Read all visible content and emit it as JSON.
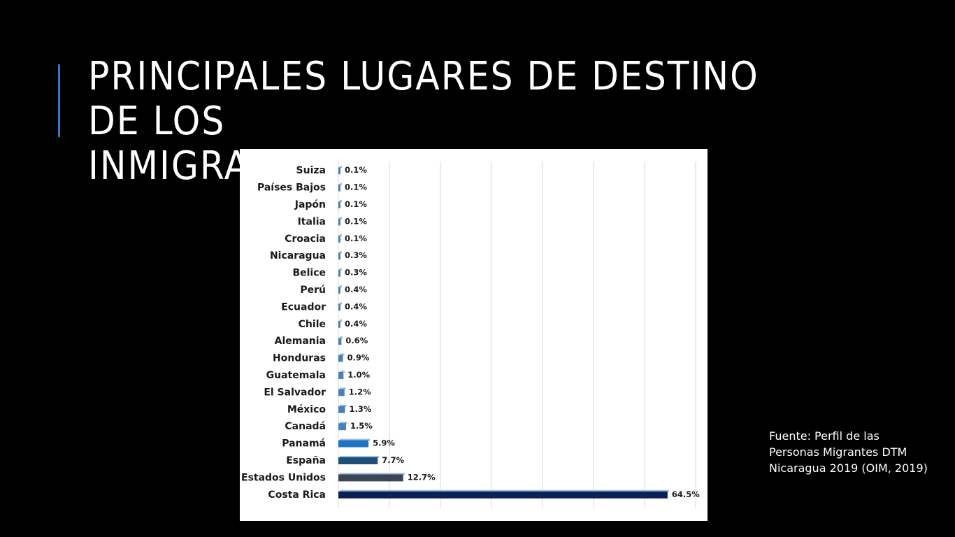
{
  "slide": {
    "title_line1": "PRINCIPALES LUGARES DE DESTINO DE LOS",
    "title_line2": "INMIGRANTES NICARAGUENSES",
    "source": "Fuente: Perfil de las Personas Migrantes DTM Nicaragua 2019 (OIM, 2019)",
    "accent_color": "#3b78c2"
  },
  "chart_data": {
    "type": "bar",
    "orientation": "horizontal",
    "categories": [
      "Suiza",
      "Países Bajos",
      "Japón",
      "Italia",
      "Croacia",
      "Nicaragua",
      "Belice",
      "Perú",
      "Ecuador",
      "Chile",
      "Alemania",
      "Honduras",
      "Guatemala",
      "El Salvador",
      "México",
      "Canadá",
      "Panamá",
      "España",
      "Estados Unidos",
      "Costa Rica"
    ],
    "values": [
      0.1,
      0.1,
      0.1,
      0.1,
      0.1,
      0.3,
      0.3,
      0.4,
      0.4,
      0.4,
      0.6,
      0.9,
      1.0,
      1.2,
      1.3,
      1.5,
      5.9,
      7.7,
      12.7,
      64.5
    ],
    "value_labels": [
      "0.1%",
      "0.1%",
      "0.1%",
      "0.1%",
      "0.1%",
      "0.3%",
      "0.3%",
      "0.4%",
      "0.4%",
      "0.4%",
      "0.6%",
      "0.9%",
      "1.0%",
      "1.2%",
      "1.3%",
      "1.5%",
      "5.9%",
      "7.7%",
      "12.7%",
      "64.5%"
    ],
    "colors": [
      "#4a7fb8",
      "#4a7fb8",
      "#4a7fb8",
      "#4a7fb8",
      "#4a7fb8",
      "#4a7fb8",
      "#4a7fb8",
      "#4a7fb8",
      "#4a7fb8",
      "#4a7fb8",
      "#4a7fb8",
      "#4a7fb8",
      "#4a7fb8",
      "#4a7fb8",
      "#4a7fb8",
      "#4a7fb8",
      "#1f73c7",
      "#1f4e79",
      "#3a4556",
      "#0e2157"
    ],
    "xlim": [
      0,
      70
    ],
    "grid": true,
    "legend": "none",
    "title": "",
    "xlabel": "",
    "ylabel": ""
  }
}
